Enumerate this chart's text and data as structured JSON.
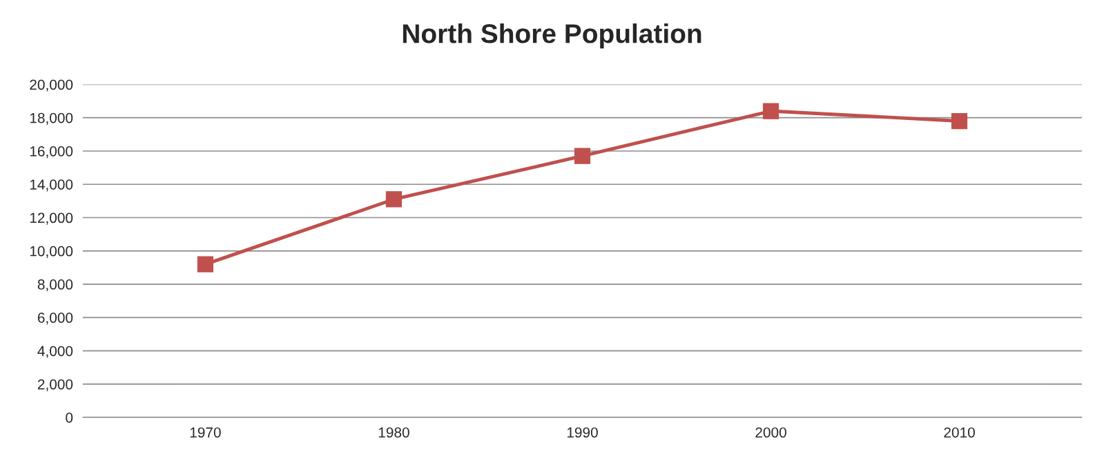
{
  "chart_data": {
    "type": "line",
    "title": "North Shore Population",
    "categories": [
      "1970",
      "1980",
      "1990",
      "2000",
      "2010"
    ],
    "series": [
      {
        "color": "#c0504d",
        "values": [
          9200,
          13100,
          15700,
          18400,
          17800
        ]
      }
    ],
    "ylim": [
      0,
      20000
    ],
    "yticks": [
      {
        "value": 0,
        "label": "0"
      },
      {
        "value": 2000,
        "label": "2,000"
      },
      {
        "value": 4000,
        "label": "4,000"
      },
      {
        "value": 6000,
        "label": "6,000"
      },
      {
        "value": 8000,
        "label": "8,000"
      },
      {
        "value": 10000,
        "label": "10,000"
      },
      {
        "value": 12000,
        "label": "12,000"
      },
      {
        "value": 14000,
        "label": "14,000"
      },
      {
        "value": 16000,
        "label": "16,000"
      },
      {
        "value": 18000,
        "label": "18,000"
      },
      {
        "value": 20000,
        "label": "20,000"
      }
    ],
    "grid": "y",
    "marker": "square",
    "line_style": "solid",
    "legend": false
  }
}
